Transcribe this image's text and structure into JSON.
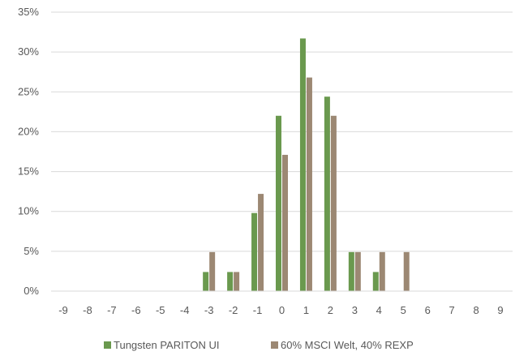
{
  "chart_data": {
    "type": "bar",
    "categories": [
      "-9",
      "-8",
      "-7",
      "-6",
      "-5",
      "-4",
      "-3",
      "-2",
      "-1",
      "0",
      "1",
      "2",
      "3",
      "4",
      "5",
      "6",
      "7",
      "8",
      "9"
    ],
    "series": [
      {
        "name": "Tungsten PARITON UI",
        "color": "#6a994e",
        "values": [
          0,
          0,
          0,
          0,
          0,
          0,
          2.4,
          2.4,
          9.8,
          22.0,
          31.7,
          24.4,
          4.9,
          2.4,
          0,
          0,
          0,
          0,
          0
        ]
      },
      {
        "name": "60% MSCI Welt, 40% REXP",
        "color": "#9c8873",
        "values": [
          0,
          0,
          0,
          0,
          0,
          0,
          4.9,
          2.4,
          12.2,
          17.1,
          26.8,
          22.0,
          4.9,
          4.9,
          4.9,
          0,
          0,
          0,
          0
        ]
      }
    ],
    "y_ticks": [
      "0%",
      "5%",
      "10%",
      "15%",
      "20%",
      "25%",
      "30%",
      "35%"
    ],
    "ylim": [
      0,
      35
    ],
    "grid": true,
    "legend_position": "bottom"
  }
}
